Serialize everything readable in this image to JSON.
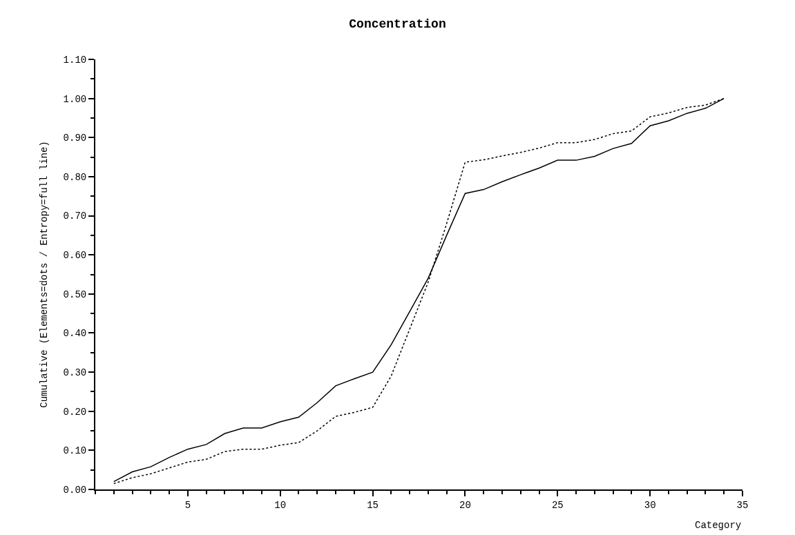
{
  "chart_data": {
    "type": "line",
    "title": "Concentration",
    "xlabel": "Category",
    "ylabel": "Cumulative (Elements=dots / Entropy=full line)",
    "x": [
      1,
      2,
      3,
      4,
      5,
      6,
      7,
      8,
      9,
      10,
      11,
      12,
      13,
      14,
      15,
      16,
      17,
      18,
      19,
      20,
      21,
      22,
      23,
      24,
      25,
      26,
      27,
      28,
      29,
      30,
      31,
      32,
      33,
      34
    ],
    "series": [
      {
        "color": "#000000",
        "line_style": "solid",
        "values": [
          0.02,
          0.045,
          0.058,
          0.082,
          0.103,
          0.115,
          0.143,
          0.157,
          0.157,
          0.173,
          0.185,
          0.222,
          0.265,
          0.283,
          0.3,
          0.37,
          0.455,
          0.54,
          0.65,
          0.757,
          0.767,
          0.787,
          0.805,
          0.822,
          0.842,
          0.842,
          0.852,
          0.872,
          0.885,
          0.93,
          0.943,
          0.962,
          0.975,
          1.0
        ]
      },
      {
        "color": "#000000",
        "line_style": "dotted",
        "values": [
          0.015,
          0.03,
          0.04,
          0.055,
          0.07,
          0.077,
          0.097,
          0.103,
          0.103,
          0.113,
          0.12,
          0.15,
          0.187,
          0.197,
          0.21,
          0.29,
          0.41,
          0.53,
          0.68,
          0.837,
          0.843,
          0.853,
          0.862,
          0.873,
          0.887,
          0.887,
          0.895,
          0.91,
          0.917,
          0.953,
          0.963,
          0.977,
          0.983,
          1.0
        ]
      }
    ],
    "xlim": [
      0,
      35
    ],
    "xticks": [
      5,
      10,
      15,
      20,
      25,
      30,
      35
    ],
    "ylim": [
      0,
      1.1
    ],
    "yticks": [
      {
        "value": 0,
        "label": "0.00"
      },
      {
        "value": 0.1,
        "label": "0.10"
      },
      {
        "value": 0.2,
        "label": "0.20"
      },
      {
        "value": 0.3,
        "label": "0.30"
      },
      {
        "value": 0.4,
        "label": "0.40"
      },
      {
        "value": 0.5,
        "label": "0.50"
      },
      {
        "value": 0.6,
        "label": "0.60"
      },
      {
        "value": 0.7,
        "label": "0.70"
      },
      {
        "value": 0.8,
        "label": "0.80"
      },
      {
        "value": 0.9,
        "label": "0.90"
      },
      {
        "value": 1.0,
        "label": "1.00"
      },
      {
        "value": 1.1,
        "label": "1.10"
      }
    ],
    "marker": "none"
  }
}
